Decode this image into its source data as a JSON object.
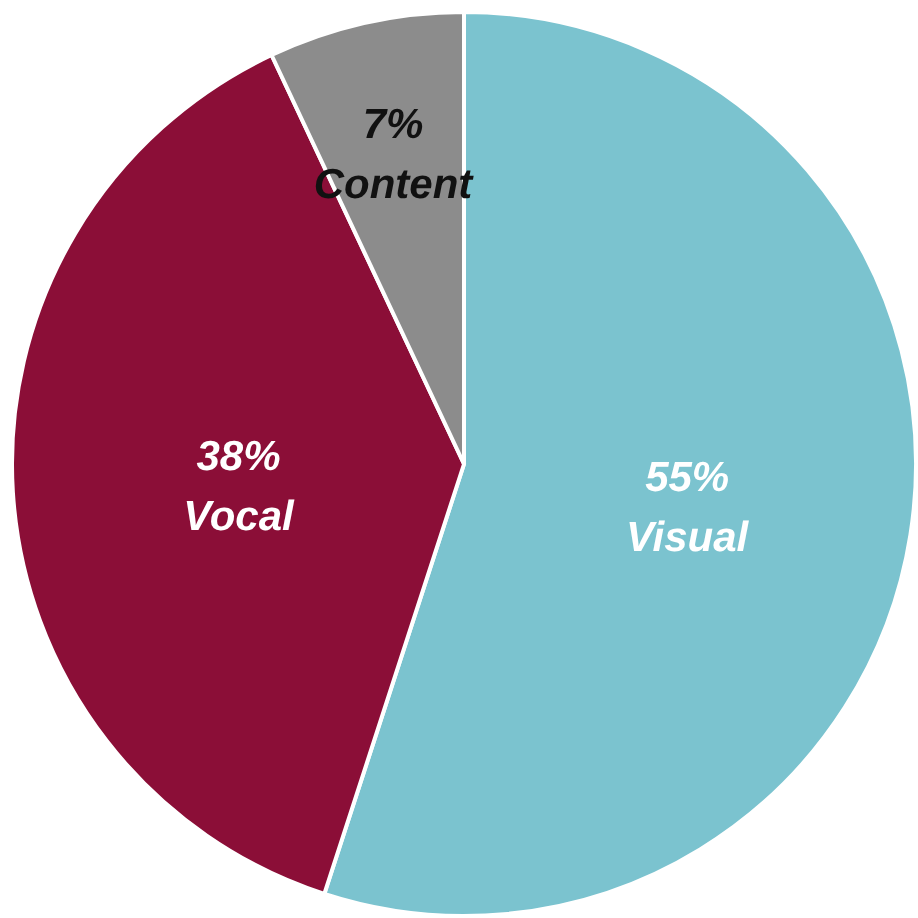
{
  "chart_data": {
    "type": "pie",
    "categories": [
      "Visual",
      "Vocal",
      "Content"
    ],
    "values": [
      55,
      38,
      7
    ],
    "value_labels": [
      "55%",
      "38%",
      "7%"
    ],
    "colors": [
      "#7bc3cf",
      "#8b0e37",
      "#8c8c8c"
    ]
  }
}
